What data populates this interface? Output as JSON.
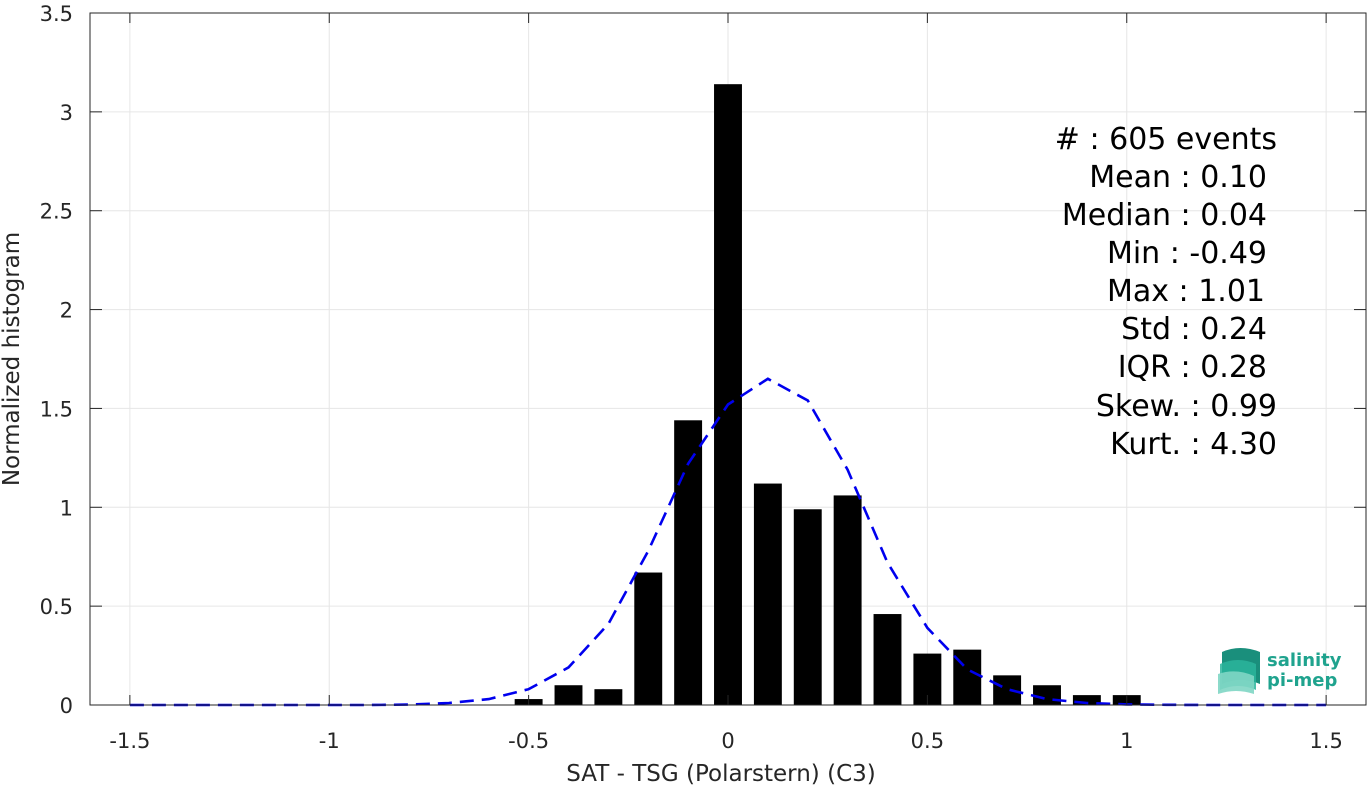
{
  "chart_data": {
    "type": "bar",
    "xlabel": "SAT - TSG (Polarstern) (C3)",
    "ylabel": "Normalized histogram",
    "xlim": [
      -1.6,
      1.6
    ],
    "ylim": [
      0,
      3.5
    ],
    "xticks": [
      -1.5,
      -1,
      -0.5,
      0,
      0.5,
      1,
      1.5
    ],
    "xtick_labels": [
      "-1.5",
      "-1",
      "-0.5",
      "0",
      "0.5",
      "1",
      "1.5"
    ],
    "yticks": [
      0,
      0.5,
      1,
      1.5,
      2,
      2.5,
      3,
      3.5
    ],
    "ytick_labels": [
      "0",
      "0.5",
      "1",
      "1.5",
      "2",
      "2.5",
      "3",
      "3.5"
    ],
    "grid": true,
    "bar_color": "#000000",
    "curve_color": "#0000ee",
    "bar_width": 0.07,
    "bars": {
      "x": [
        -0.5,
        -0.4,
        -0.3,
        -0.2,
        -0.1,
        0.0,
        0.1,
        0.2,
        0.3,
        0.4,
        0.5,
        0.6,
        0.7,
        0.8,
        0.9,
        1.0
      ],
      "values": [
        0.03,
        0.1,
        0.08,
        0.67,
        1.44,
        3.14,
        1.12,
        0.99,
        1.06,
        0.46,
        0.26,
        0.28,
        0.15,
        0.1,
        0.05,
        0.05
      ]
    },
    "fit_curve": {
      "style": "dashed",
      "x": [
        -1.5,
        -1.4,
        -1.3,
        -1.2,
        -1.1,
        -1.0,
        -0.9,
        -0.8,
        -0.7,
        -0.6,
        -0.5,
        -0.4,
        -0.3,
        -0.2,
        -0.1,
        0.0,
        0.1,
        0.2,
        0.3,
        0.4,
        0.5,
        0.6,
        0.7,
        0.8,
        0.9,
        1.0,
        1.1,
        1.2,
        1.3,
        1.4,
        1.5
      ],
      "y": [
        0,
        0,
        0,
        0,
        0,
        0,
        0,
        0.002,
        0.01,
        0.03,
        0.08,
        0.19,
        0.41,
        0.78,
        1.22,
        1.52,
        1.65,
        1.54,
        1.19,
        0.72,
        0.39,
        0.18,
        0.08,
        0.03,
        0.01,
        0.003,
        0.001,
        0,
        0,
        0,
        0
      ]
    }
  },
  "stats": [
    {
      "label": "#  ",
      "value": ": 605 events"
    },
    {
      "label": "Mean ",
      "value": ": 0.10"
    },
    {
      "label": "Median ",
      "value": ": 0.04"
    },
    {
      "label": "Min ",
      "value": ": -0.49"
    },
    {
      "label": "Max ",
      "value": ": 1.01"
    },
    {
      "label": "Std ",
      "value": ": 0.24"
    },
    {
      "label": "IQR ",
      "value": ": 0.28"
    },
    {
      "label": "Skew. ",
      "value": ": 0.99"
    },
    {
      "label": "Kurt. ",
      "value": ": 4.30"
    }
  ],
  "logo": {
    "line1": "salinity",
    "line2": "pi-mep",
    "color": "#1fa38e"
  }
}
